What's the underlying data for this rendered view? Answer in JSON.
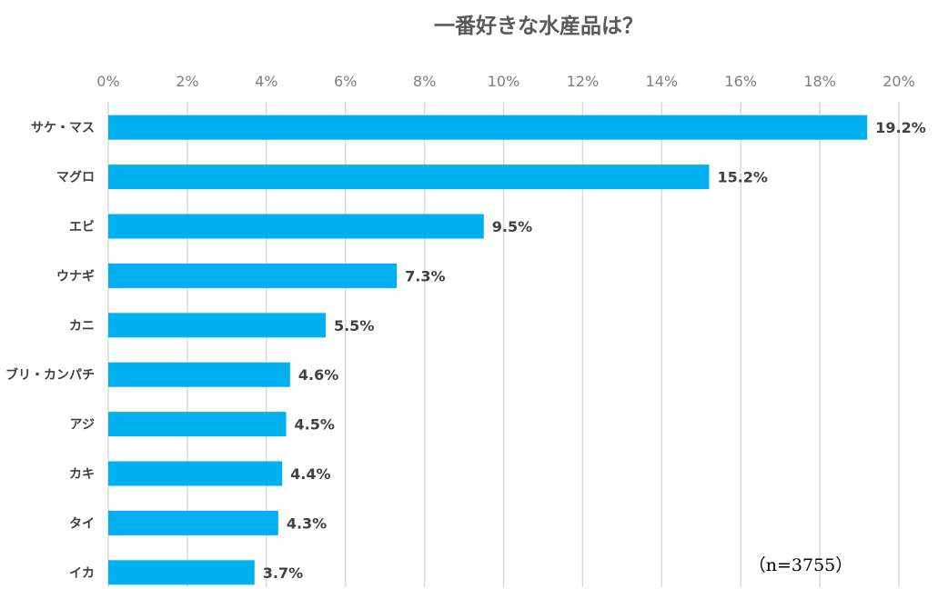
{
  "chart_data": {
    "type": "bar",
    "orientation": "horizontal",
    "title": "一番好きな水産品は？",
    "categories": [
      "サケ・マス",
      "マグロ",
      "エビ",
      "ウナギ",
      "カニ",
      "ブリ・カンパチ",
      "アジ",
      "カキ",
      "タイ",
      "イカ"
    ],
    "values": [
      19.2,
      15.2,
      9.5,
      7.3,
      5.5,
      4.6,
      4.5,
      4.4,
      4.3,
      3.7
    ],
    "value_labels": [
      "19.2%",
      "15.2%",
      "9.5%",
      "7.3%",
      "5.5%",
      "4.6%",
      "4.5%",
      "4.4%",
      "4.3%",
      "3.7%"
    ],
    "x_ticks": [
      "0%",
      "2%",
      "4%",
      "6%",
      "8%",
      "10%",
      "12%",
      "14%",
      "16%",
      "18%",
      "20%"
    ],
    "xlim": [
      0,
      20
    ],
    "x_axis_position": "top",
    "grid": true,
    "bar_color": "#00b0f0",
    "grid_color": "#d9d9d9",
    "annotation": "（n=3755）"
  }
}
